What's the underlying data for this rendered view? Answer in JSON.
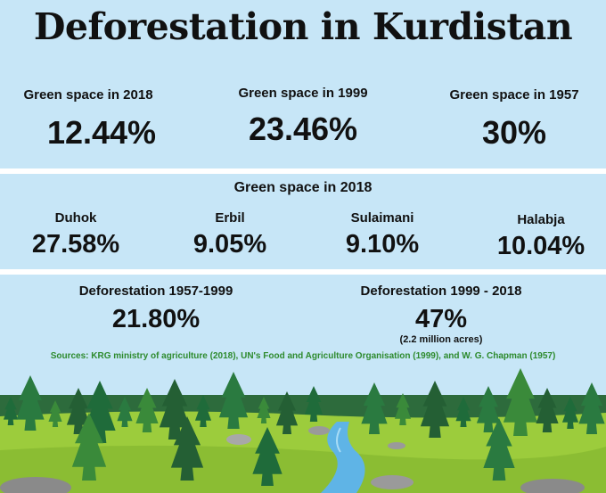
{
  "title": "Deforestation in Kurdistan",
  "summary": [
    {
      "label": "Green space in 2018",
      "value": "12.44%"
    },
    {
      "label": "Green space in 1999",
      "value": "23.46%"
    },
    {
      "label": "Green space in 1957",
      "value": "30%"
    }
  ],
  "regions": {
    "heading": "Green space in 2018",
    "items": [
      {
        "name": "Duhok",
        "value": "27.58%"
      },
      {
        "name": "Erbil",
        "value": "9.05%"
      },
      {
        "name": "Sulaimani",
        "value": "9.10%"
      },
      {
        "name": "Halabja",
        "value": "10.04%"
      }
    ]
  },
  "deforestation": [
    {
      "label": "Deforestation 1957-1999",
      "value": "21.80%",
      "note": ""
    },
    {
      "label": "Deforestation 1999 - 2018",
      "value": "47%",
      "note": "(2.2 million acres)"
    }
  ],
  "sources": "Sources: KRG ministry of agriculture (2018), UN's Food and Agriculture Organisation  (1999), and W. G. Chapman (1957)",
  "colors": {
    "panel": "#c7e6f7",
    "sources_text": "#2d8a2d",
    "grass": "#9ccc3c",
    "tree": "#1f6b3a",
    "river": "#5fb4e6"
  }
}
